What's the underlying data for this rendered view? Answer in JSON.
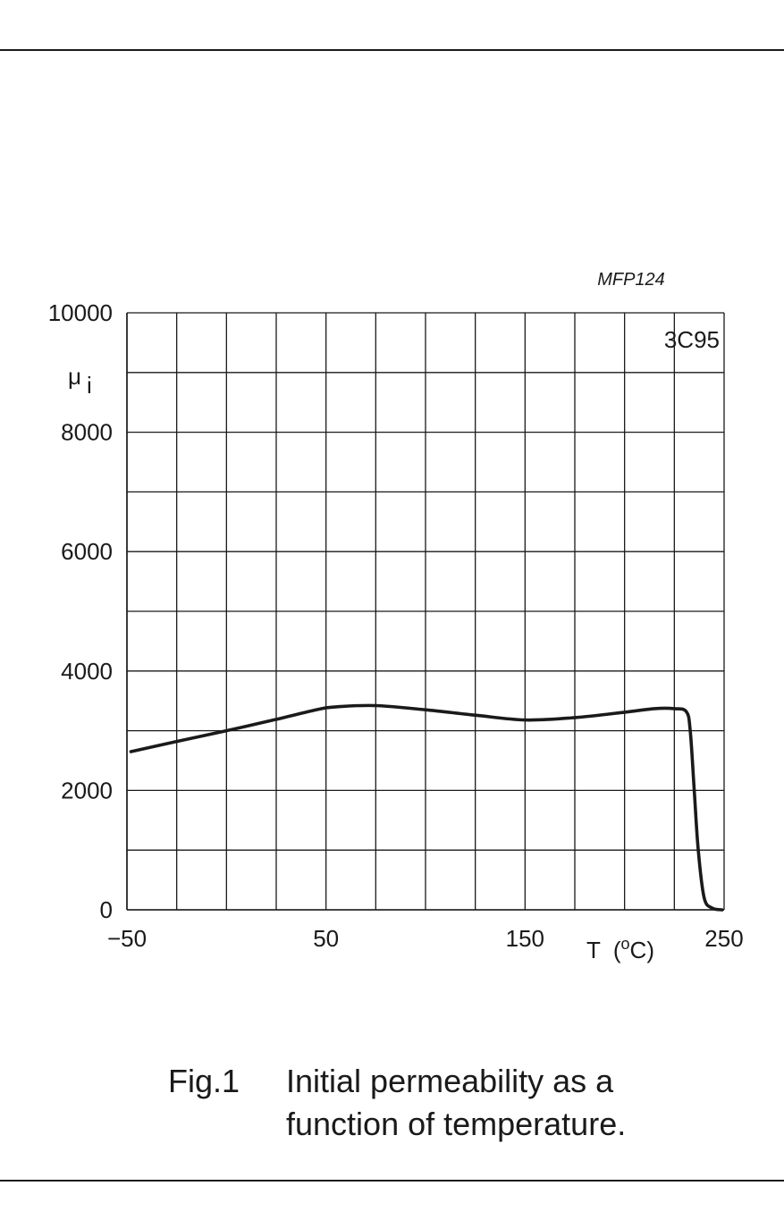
{
  "chart_data": {
    "type": "line",
    "code": "MFP124",
    "material": "3C95",
    "ylabel": "μ",
    "ylabel_sub": "i",
    "xlabel": "T  (",
    "xlabel_sup": "o",
    "xlabel_unit": "C)",
    "xlim": [
      -50,
      250
    ],
    "ylim": [
      0,
      10000
    ],
    "grid": true,
    "x_major": 25,
    "y_major": 1000,
    "x_tick_labels": [
      {
        "value": -50,
        "text": "−50"
      },
      {
        "value": 50,
        "text": "50"
      },
      {
        "value": 150,
        "text": "150"
      },
      {
        "value": 250,
        "text": "250"
      }
    ],
    "y_tick_labels": [
      {
        "value": 10000,
        "text": "10000"
      },
      {
        "value": 8000,
        "text": "8000"
      },
      {
        "value": 6000,
        "text": "6000"
      },
      {
        "value": 4000,
        "text": "4000"
      },
      {
        "value": 2000,
        "text": "2000"
      },
      {
        "value": 0,
        "text": "0"
      }
    ],
    "series": [
      {
        "color": "#1a1a1a",
        "points": [
          [
            -48,
            2650
          ],
          [
            -25,
            2820
          ],
          [
            0,
            3000
          ],
          [
            25,
            3190
          ],
          [
            45,
            3350
          ],
          [
            55,
            3400
          ],
          [
            75,
            3420
          ],
          [
            100,
            3350
          ],
          [
            125,
            3260
          ],
          [
            150,
            3180
          ],
          [
            175,
            3220
          ],
          [
            200,
            3310
          ],
          [
            215,
            3370
          ],
          [
            225,
            3370
          ],
          [
            231,
            3320
          ],
          [
            233,
            3000
          ],
          [
            235,
            2000
          ],
          [
            237,
            1000
          ],
          [
            240,
            200
          ],
          [
            244,
            30
          ],
          [
            249,
            0
          ]
        ]
      }
    ]
  },
  "caption": {
    "label": "Fig.1",
    "line1": "Initial permeability as a",
    "line2": "function of temperature."
  }
}
